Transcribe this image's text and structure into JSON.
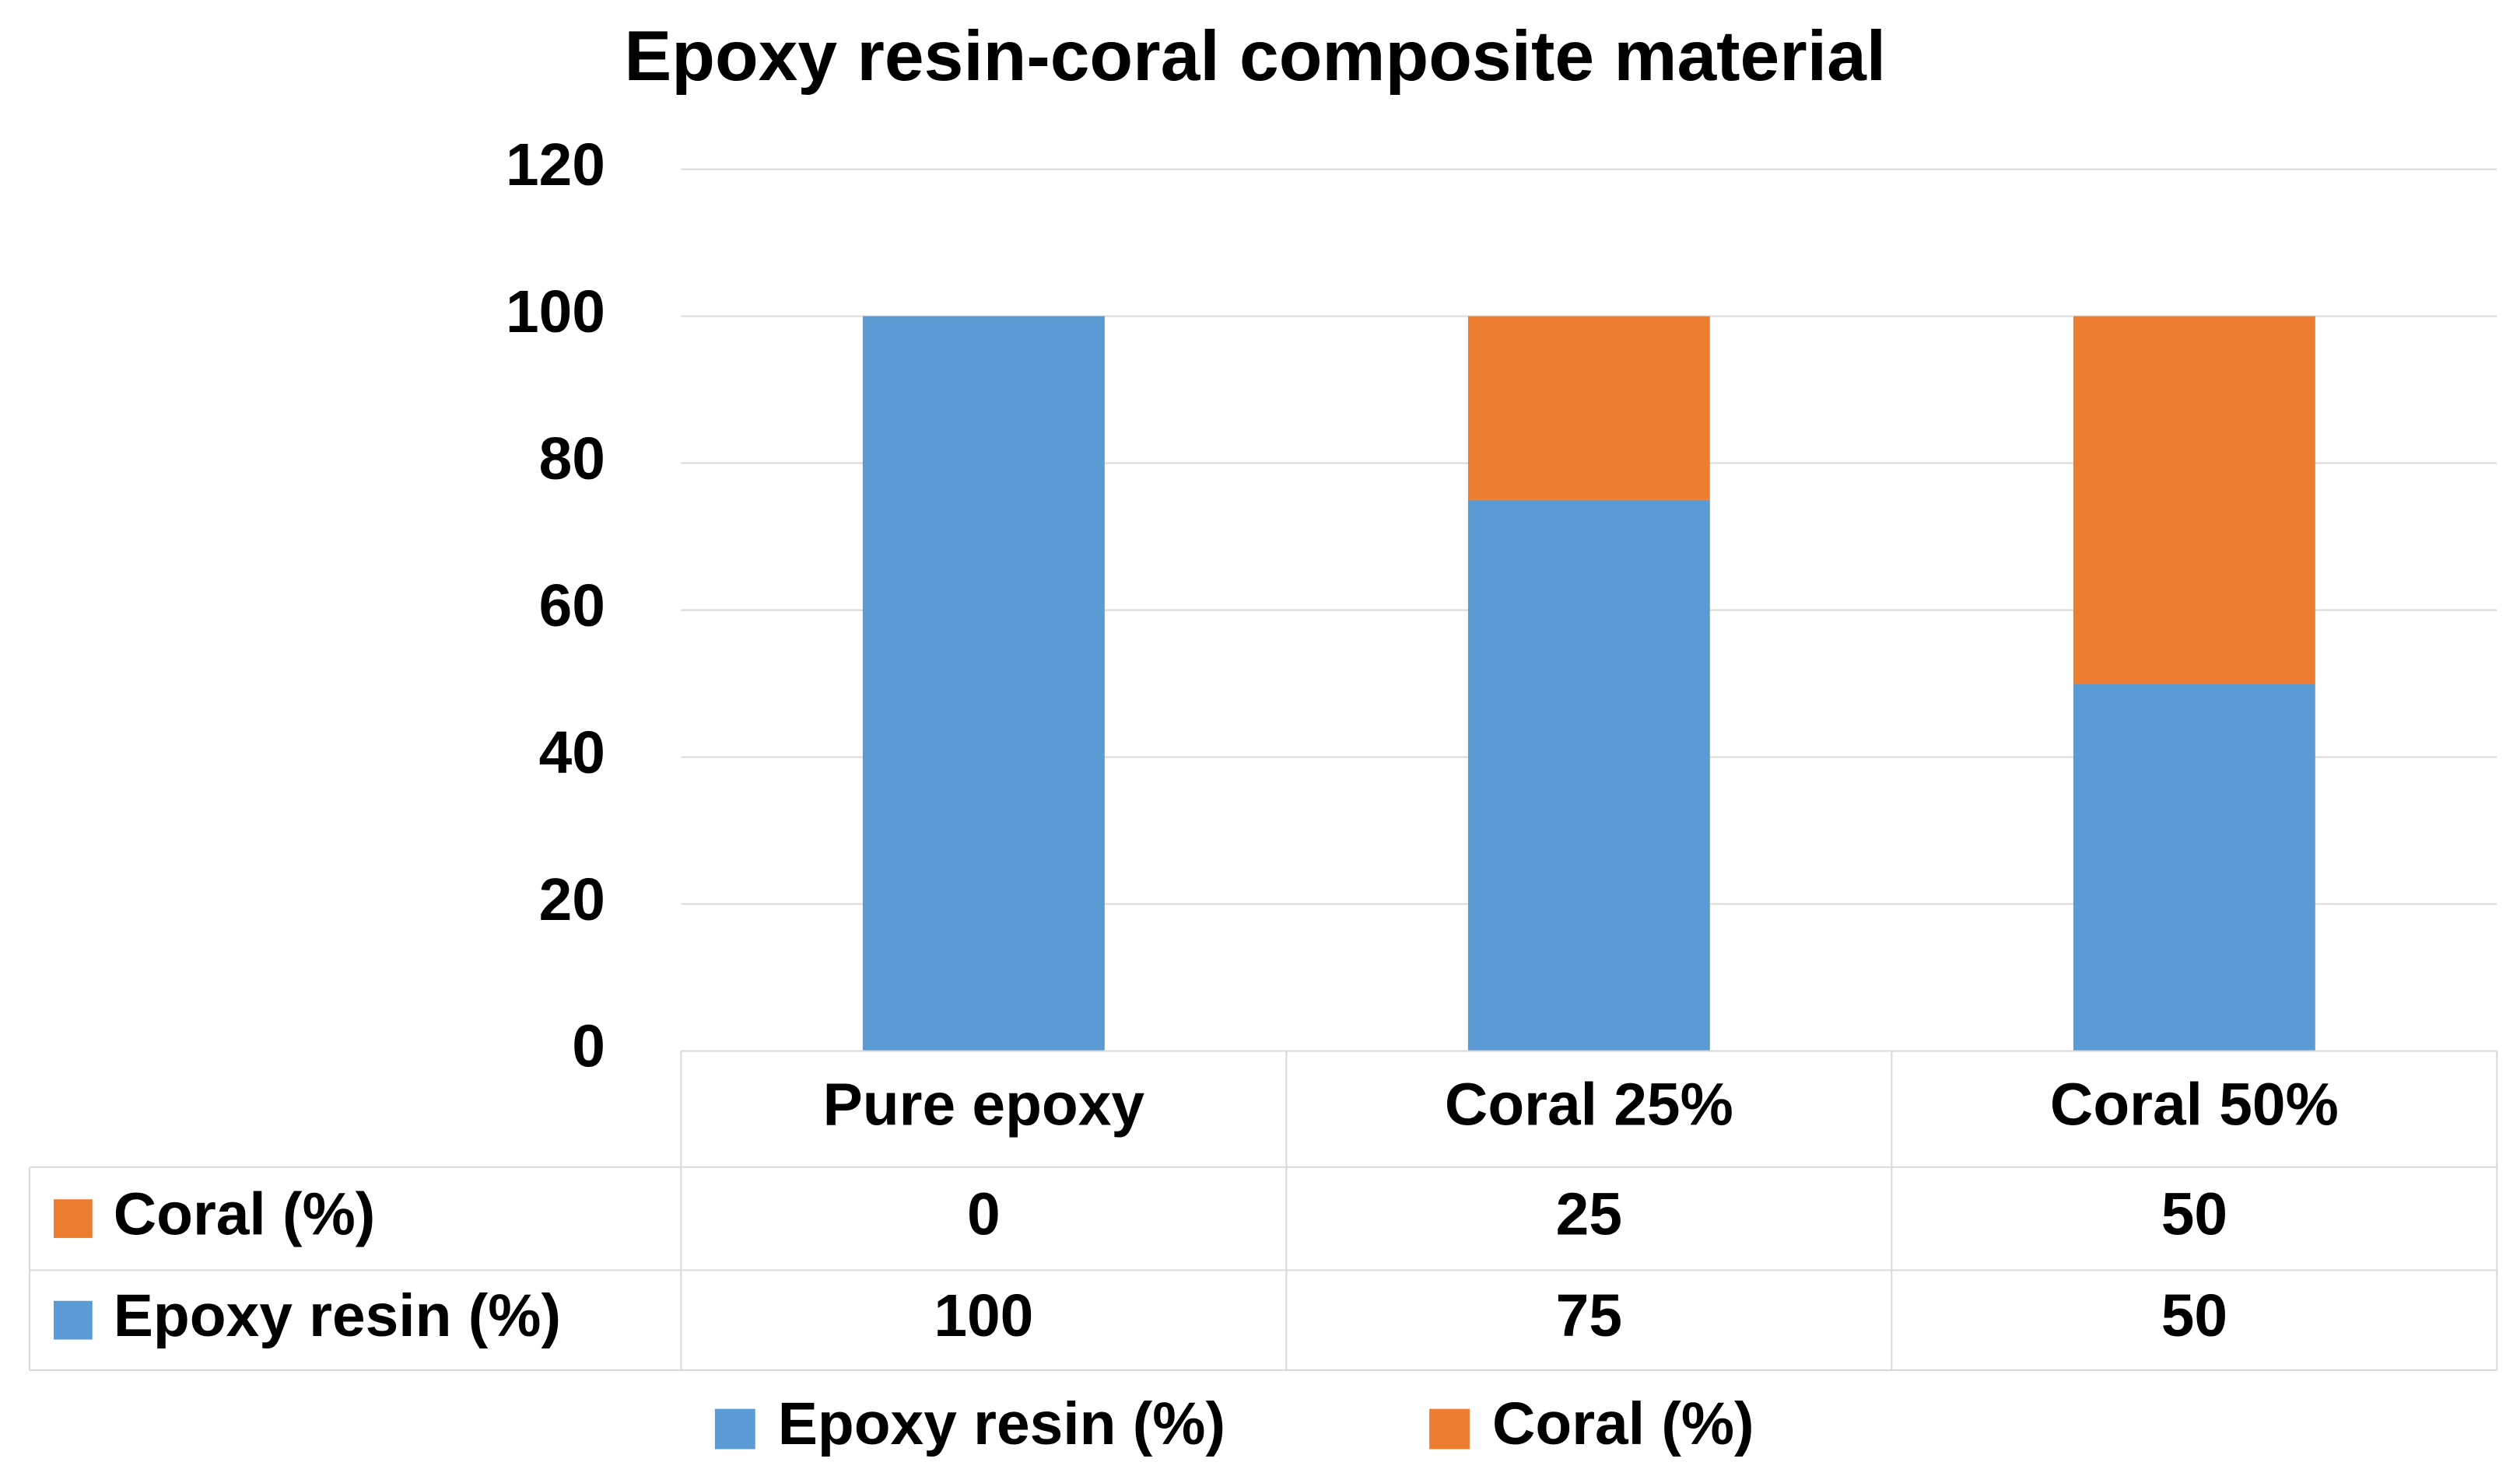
{
  "chart_data": {
    "type": "stacked_bar",
    "title": "Epoxy resin-coral composite material",
    "categories": [
      "Pure epoxy",
      "Coral 25%",
      "Coral 50%"
    ],
    "series": [
      {
        "name": "Epoxy resin (%)",
        "color": "#5b9bd5",
        "values": [
          100,
          75,
          50
        ]
      },
      {
        "name": "Coral (%)",
        "color": "#ed7d31",
        "values": [
          0,
          25,
          50
        ]
      }
    ],
    "ylim": [
      0,
      120
    ],
    "yticks": [
      0,
      20,
      40,
      60,
      80,
      100,
      120
    ],
    "grid": true,
    "data_table": true,
    "legend": "bottom"
  }
}
